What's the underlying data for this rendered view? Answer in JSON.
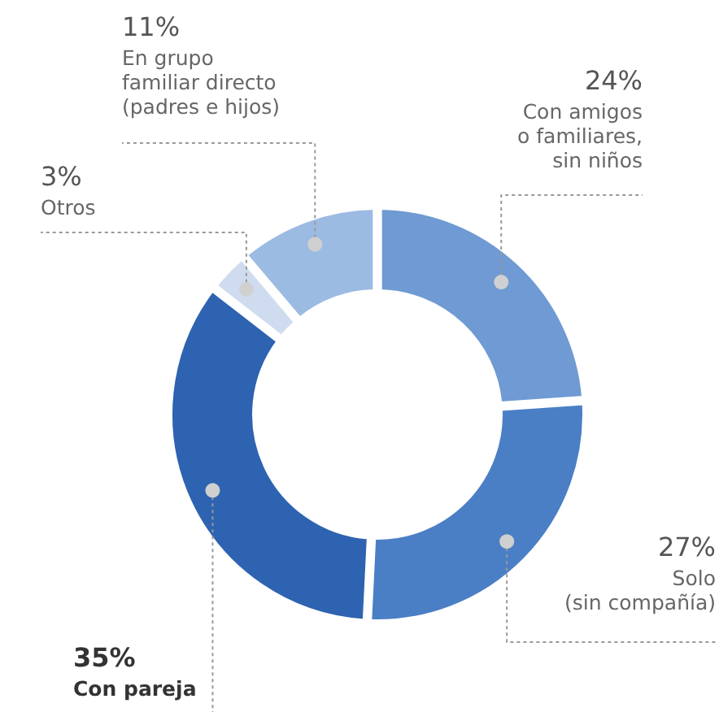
{
  "chart_data": {
    "type": "donut",
    "categories": [
      "Con amigos\no familiares,\nsin niños",
      "Solo\n(sin compañía)",
      "Con pareja",
      "Otros",
      "En grupo\nfamiliar directo\n(padres e hijos)"
    ],
    "values": [
      24,
      27,
      35,
      3,
      11
    ],
    "value_labels": [
      "24%",
      "27%",
      "35%",
      "3%",
      "11%"
    ],
    "colors": [
      "#6f9ad3",
      "#4a7fc6",
      "#2d63b0",
      "#cfdcef",
      "#9cbbe2"
    ],
    "legend": false
  }
}
